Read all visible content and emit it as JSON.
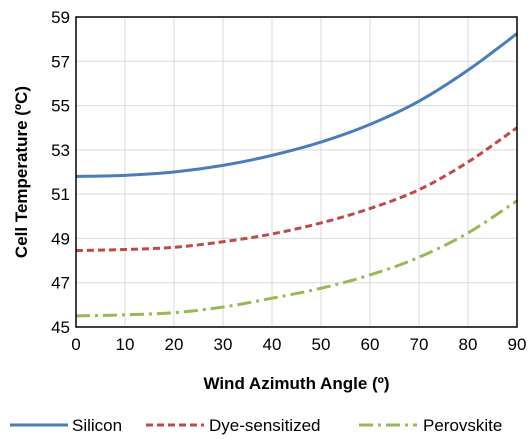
{
  "chart_data": {
    "type": "line",
    "title": "",
    "xlabel": "Wind Azimuth Angle (º)",
    "ylabel": "Cell Temperature (ºC)",
    "xlim": [
      0,
      90
    ],
    "ylim": [
      45,
      59
    ],
    "x_ticks": [
      "0",
      "10",
      "20",
      "30",
      "40",
      "50",
      "60",
      "70",
      "80",
      "90"
    ],
    "y_ticks": [
      "45",
      "47",
      "49",
      "51",
      "53",
      "55",
      "57",
      "59"
    ],
    "grid": true,
    "legend_position": "bottom",
    "x": [
      0,
      10,
      20,
      30,
      40,
      50,
      60,
      70,
      80,
      90
    ],
    "series": [
      {
        "name": "Silicon",
        "color": "#4a7ebb",
        "style": "solid",
        "values": [
          51.8,
          51.85,
          52.0,
          52.3,
          52.75,
          53.35,
          54.15,
          55.2,
          56.6,
          58.25
        ]
      },
      {
        "name": "Dye-sensitized",
        "color": "#be4b48",
        "style": "dashed",
        "values": [
          48.45,
          48.5,
          48.6,
          48.85,
          49.2,
          49.7,
          50.35,
          51.2,
          52.45,
          54.0
        ]
      },
      {
        "name": "Perovskite",
        "color": "#98b954",
        "style": "dash-dot",
        "values": [
          45.5,
          45.55,
          45.65,
          45.9,
          46.3,
          46.75,
          47.35,
          48.15,
          49.25,
          50.7
        ]
      }
    ]
  }
}
